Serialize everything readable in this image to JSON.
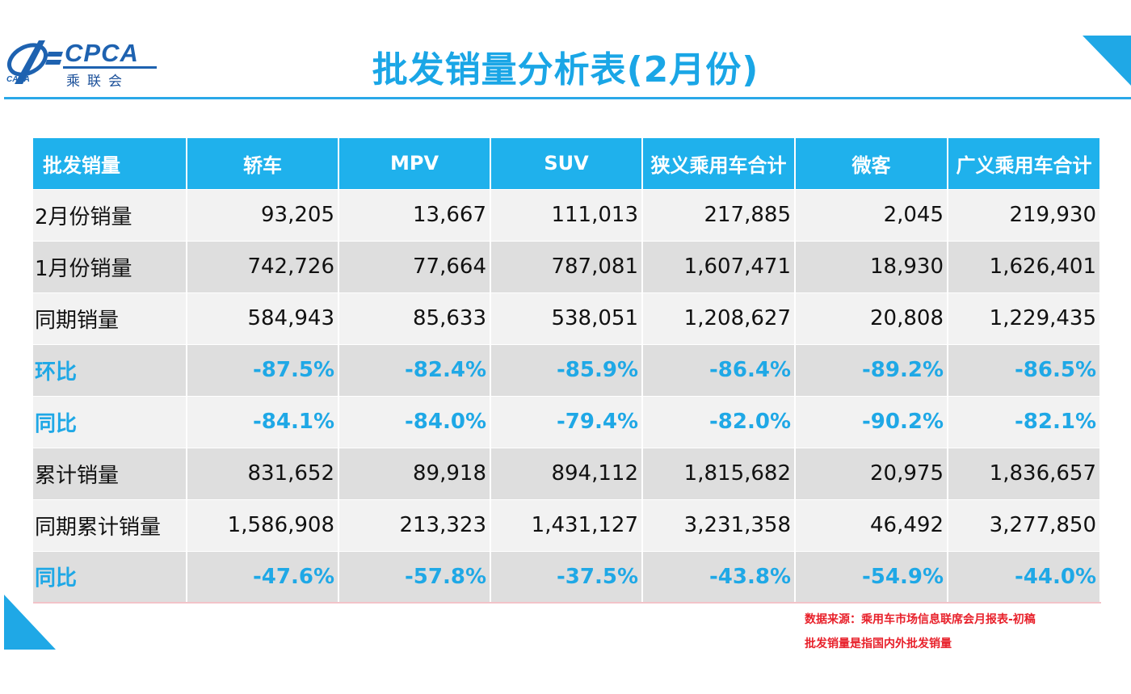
{
  "header": {
    "logo": {
      "brand": "CPCA",
      "brand_cn": "乘联会",
      "sub_brand": "CADA"
    },
    "title": "批发销量分析表(2月份)"
  },
  "table": {
    "columns": [
      "批发销量",
      "轿车",
      "MPV",
      "SUV",
      "狭义乘用车合计",
      "微客",
      "广义乘用车合计"
    ],
    "rows": [
      {
        "label": "2月份销量",
        "type": "value",
        "cells": [
          "93,205",
          "13,667",
          "111,013",
          "217,885",
          "2,045",
          "219,930"
        ]
      },
      {
        "label": "1月份销量",
        "type": "value",
        "cells": [
          "742,726",
          "77,664",
          "787,081",
          "1,607,471",
          "18,930",
          "1,626,401"
        ]
      },
      {
        "label": "同期销量",
        "type": "value",
        "cells": [
          "584,943",
          "85,633",
          "538,051",
          "1,208,627",
          "20,808",
          "1,229,435"
        ]
      },
      {
        "label": "环比",
        "type": "pct",
        "cells": [
          "-87.5%",
          "-82.4%",
          "-85.9%",
          "-86.4%",
          "-89.2%",
          "-86.5%"
        ]
      },
      {
        "label": "同比",
        "type": "pct",
        "cells": [
          "-84.1%",
          "-84.0%",
          "-79.4%",
          "-82.0%",
          "-90.2%",
          "-82.1%"
        ]
      },
      {
        "label": "累计销量",
        "type": "value",
        "cells": [
          "831,652",
          "89,918",
          "894,112",
          "1,815,682",
          "20,975",
          "1,836,657"
        ]
      },
      {
        "label": "同期累计销量",
        "type": "value",
        "cells": [
          "1,586,908",
          "213,323",
          "1,431,127",
          "3,231,358",
          "46,492",
          "3,277,850"
        ]
      },
      {
        "label": "同比",
        "type": "pct",
        "cells": [
          "-47.6%",
          "-57.8%",
          "-37.5%",
          "-43.8%",
          "-54.9%",
          "-44.0%"
        ]
      }
    ]
  },
  "notes": {
    "source": "数据来源：乘用车市场信息联席会月报表-初稿",
    "definition": "批发销量是指国内外批发销量"
  },
  "colors": {
    "accent": "#1fb1ec",
    "title": "#1aa6e6",
    "note": "#e8202a",
    "logo": "#1e62b0"
  }
}
